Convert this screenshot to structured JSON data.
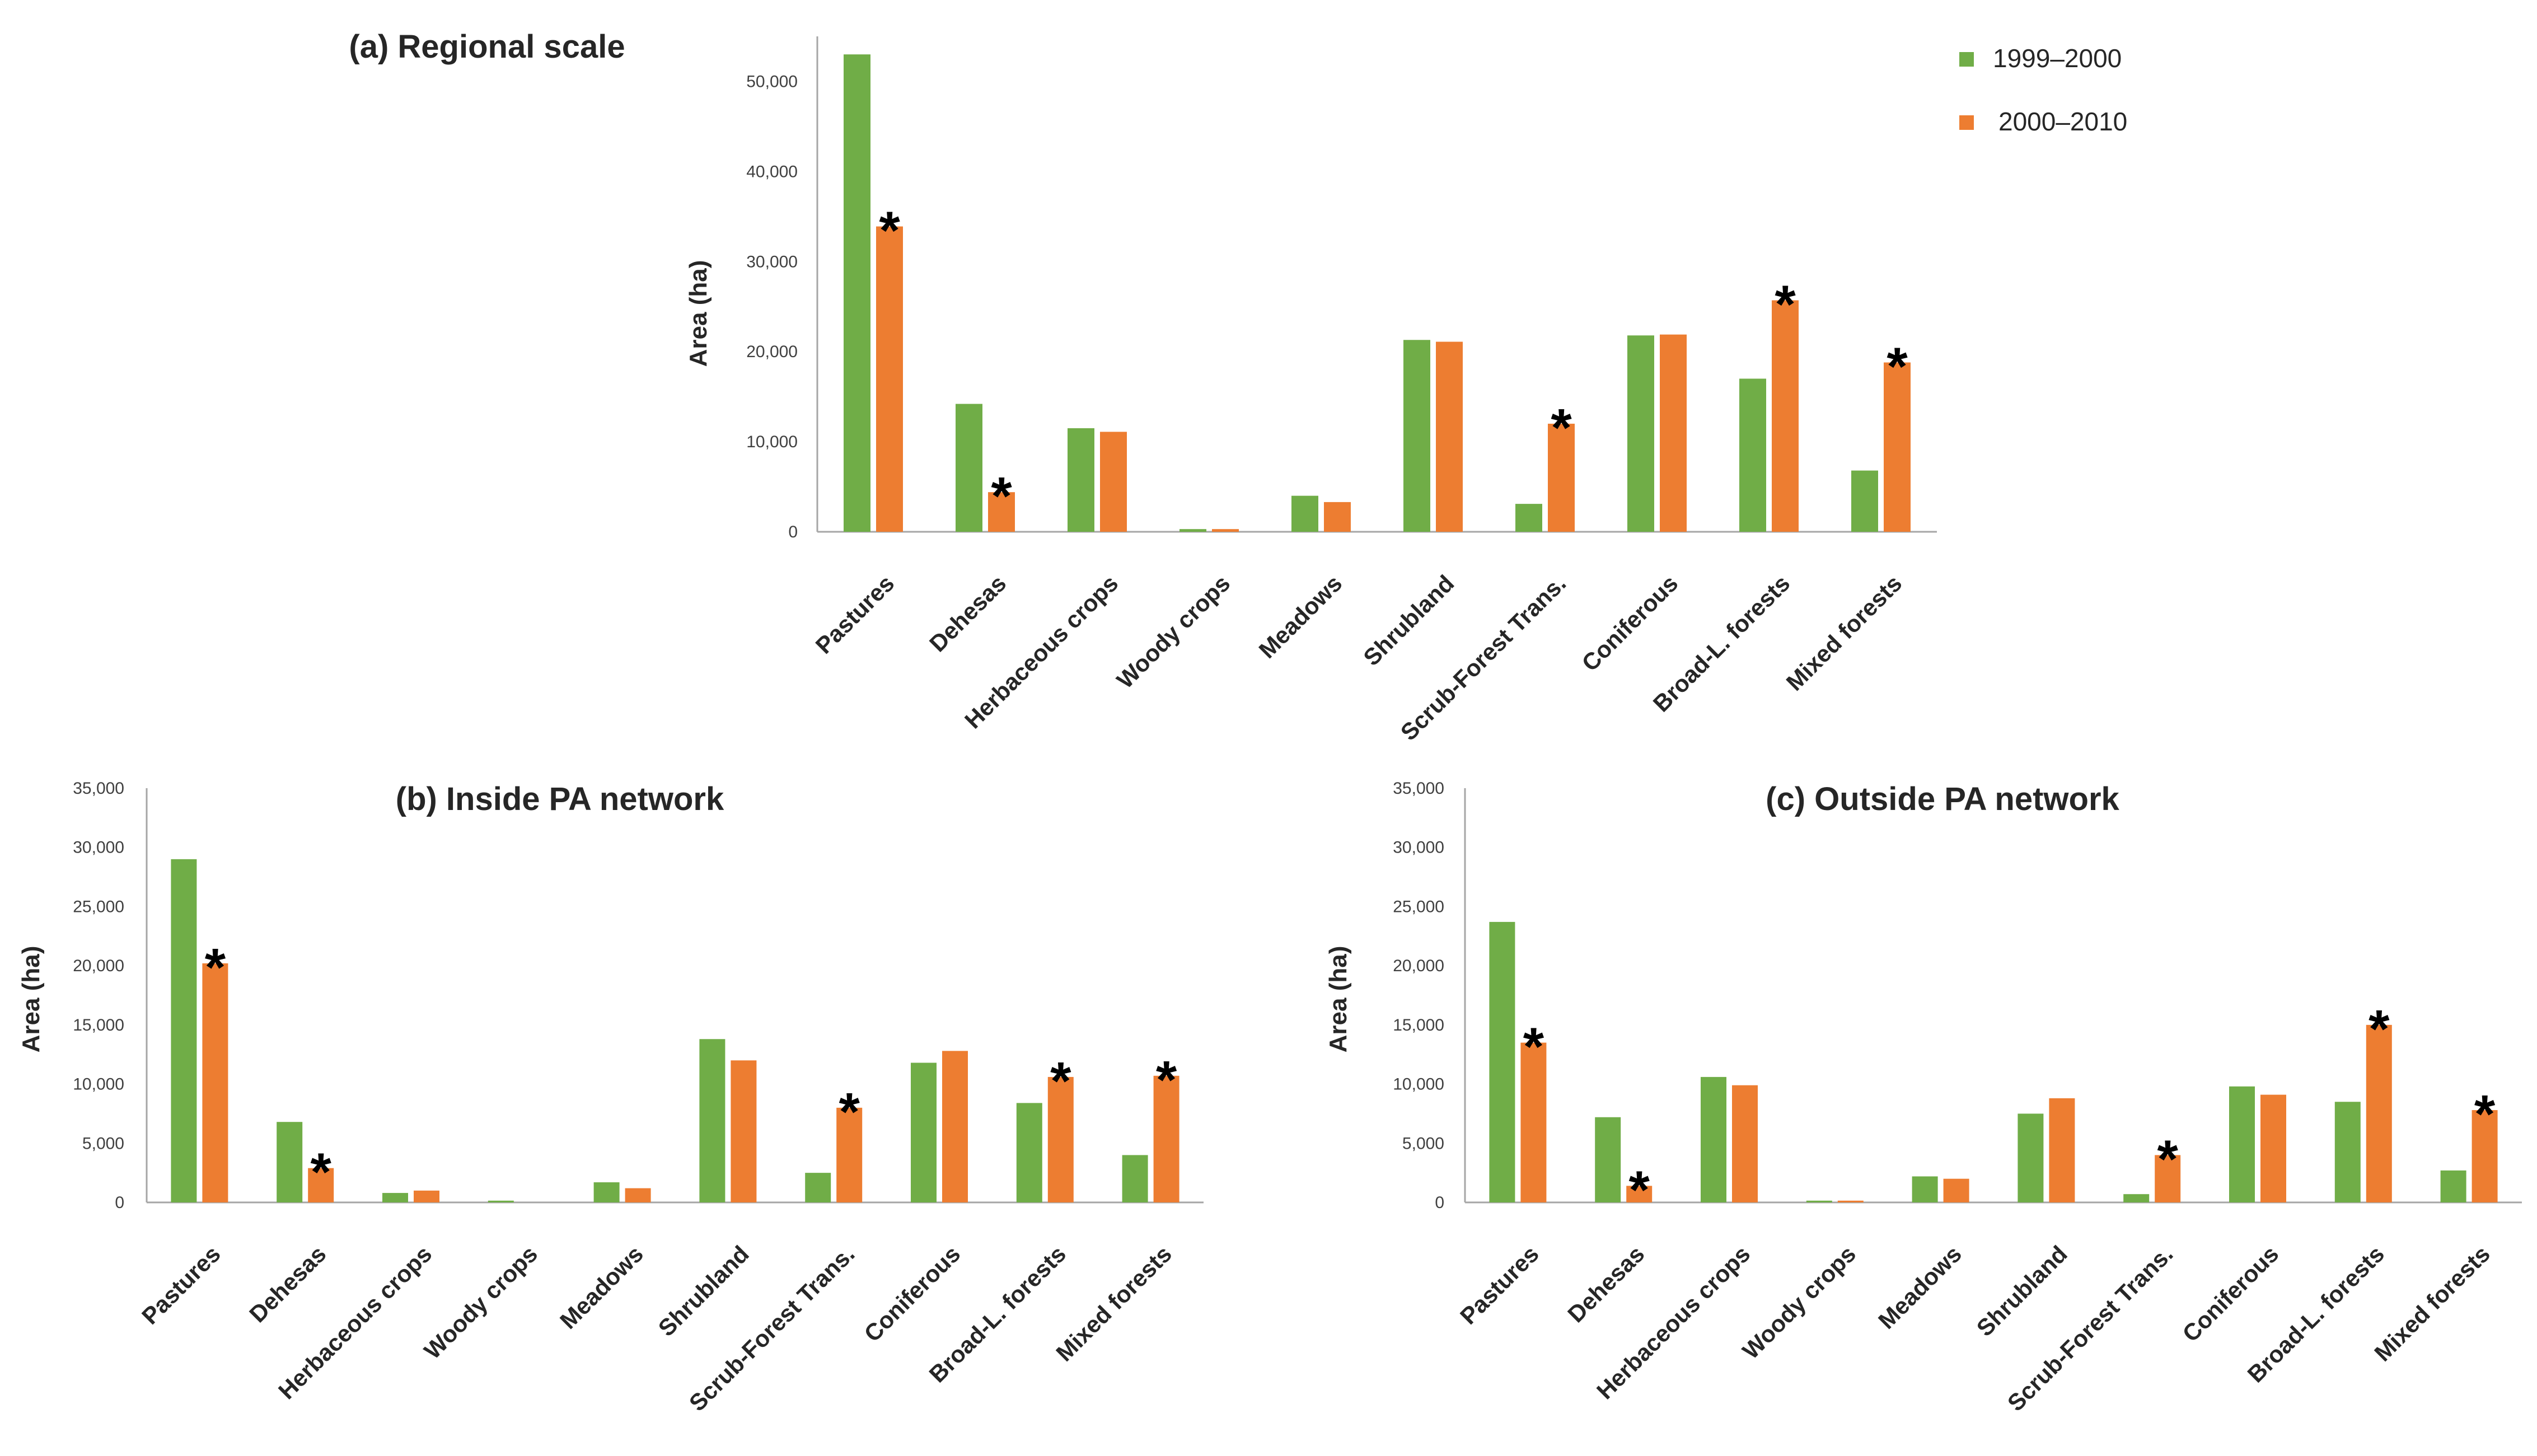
{
  "colors": {
    "series_1": "#70ad47",
    "series_2": "#ed7d31",
    "axis": "#a6a6a6"
  },
  "legend": {
    "items": [
      "1999–2000",
      "2000–2010"
    ]
  },
  "chart_data": [
    {
      "type": "bar",
      "title": "(a) Regional scale",
      "xlabel": "",
      "ylabel": "Area (ha)",
      "ylim": [
        0,
        55000
      ],
      "yticks": [
        "0",
        "10,000",
        "20,000",
        "30,000",
        "40,000",
        "50,000"
      ],
      "categories": [
        "Pastures",
        "Dehesas",
        "Herbaceous crops",
        "Woody crops",
        "Meadows",
        "Shrubland",
        "Scrub-Forest Trans.",
        "Coniferous",
        "Broad-L. forests",
        "Mixed forests"
      ],
      "series": [
        {
          "name": "1999–2000",
          "values": [
            53000,
            14200,
            11500,
            300,
            4000,
            21300,
            3100,
            21800,
            17000,
            6800
          ]
        },
        {
          "name": "2000–2010",
          "values": [
            33900,
            4400,
            11100,
            300,
            3300,
            21100,
            12000,
            21900,
            25700,
            18800
          ]
        }
      ],
      "significance_marker": "*",
      "significant": [
        true,
        true,
        false,
        false,
        false,
        false,
        true,
        false,
        true,
        true
      ]
    },
    {
      "type": "bar",
      "title": "(b) Inside PA network",
      "xlabel": "",
      "ylabel": "Area (ha)",
      "ylim": [
        0,
        35000
      ],
      "yticks": [
        "0",
        "5,000",
        "10,000",
        "15,000",
        "20,000",
        "25,000",
        "30,000",
        "35,000"
      ],
      "categories": [
        "Pastures",
        "Dehesas",
        "Herbaceous crops",
        "Woody crops",
        "Meadows",
        "Shrubland",
        "Scrub-Forest Trans.",
        "Coniferous",
        "Broad-L. forests",
        "Mixed forests"
      ],
      "series": [
        {
          "name": "1999–2000",
          "values": [
            29000,
            6800,
            800,
            150,
            1700,
            13800,
            2500,
            11800,
            8400,
            4000
          ]
        },
        {
          "name": "2000–2010",
          "values": [
            20200,
            2900,
            1000,
            0,
            1200,
            12000,
            8000,
            12800,
            10600,
            10700
          ]
        }
      ],
      "significance_marker": "*",
      "significant": [
        true,
        true,
        false,
        false,
        false,
        false,
        true,
        false,
        true,
        true
      ]
    },
    {
      "type": "bar",
      "title": "(c) Outside PA network",
      "xlabel": "",
      "ylabel": "Area (ha)",
      "ylim": [
        0,
        35000
      ],
      "yticks": [
        "0",
        "5,000",
        "10,000",
        "15,000",
        "20,000",
        "25,000",
        "30,000",
        "35,000"
      ],
      "categories": [
        "Pastures",
        "Dehesas",
        "Herbaceous crops",
        "Woody crops",
        "Meadows",
        "Shrubland",
        "Scrub-Forest Trans.",
        "Coniferous",
        "Broad-L. forests",
        "Mixed forests"
      ],
      "series": [
        {
          "name": "1999–2000",
          "values": [
            23700,
            7200,
            10600,
            150,
            2200,
            7500,
            700,
            9800,
            8500,
            2700
          ]
        },
        {
          "name": "2000–2010",
          "values": [
            13500,
            1400,
            9900,
            150,
            2000,
            8800,
            4000,
            9100,
            15000,
            7800
          ]
        }
      ],
      "significance_marker": "*",
      "significant": [
        true,
        true,
        false,
        false,
        false,
        false,
        true,
        false,
        true,
        true
      ]
    }
  ]
}
